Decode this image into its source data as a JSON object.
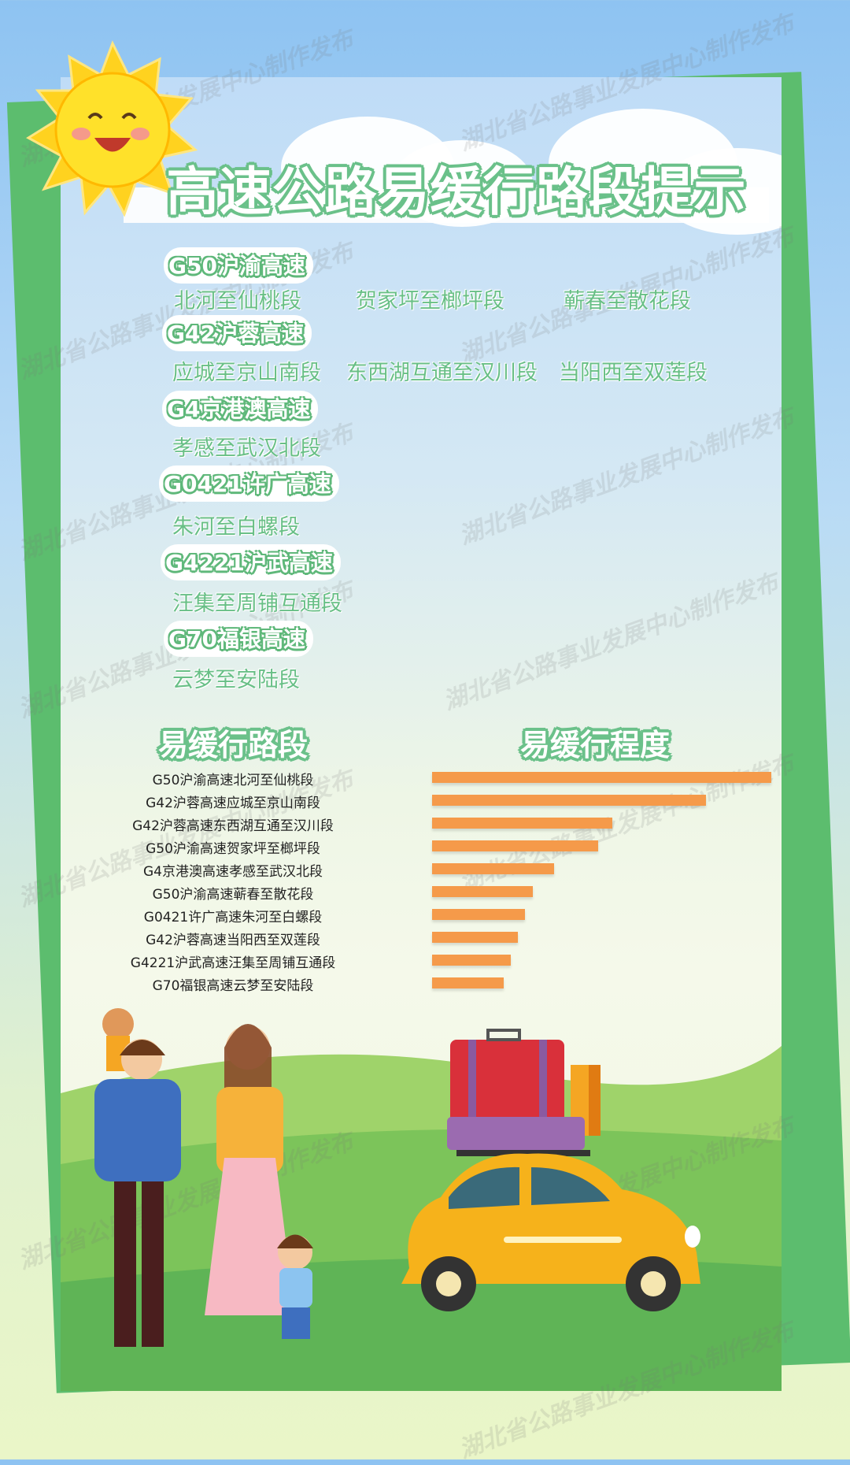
{
  "title": "高速公路易缓行路段提示",
  "watermark": "湖北省公路事业发展中心制作发布",
  "highways": [
    {
      "name": "G50沪渝高速",
      "segments": [
        "北河至仙桃段",
        "贺家坪至榔坪段",
        "蕲春至散花段"
      ]
    },
    {
      "name": "G42沪蓉高速",
      "segments": [
        "应城至京山南段",
        "东西湖互通至汉川段",
        "当阳西至双莲段"
      ]
    },
    {
      "name": "G4京港澳高速",
      "segments": [
        "孝感至武汉北段"
      ]
    },
    {
      "name": "G0421许广高速",
      "segments": [
        "朱河至白螺段"
      ]
    },
    {
      "name": "G4221沪武高速",
      "segments": [
        "汪集至周铺互通段"
      ]
    },
    {
      "name": "G70福银高速",
      "segments": [
        "云梦至安陆段"
      ]
    }
  ],
  "chart_data": {
    "type": "bar",
    "orientation": "horizontal",
    "left_title": "易缓行路段",
    "right_title": "易缓行程度",
    "categories": [
      "G50沪渝高速北河至仙桃段",
      "G42沪蓉高速应城至京山南段",
      "G42沪蓉高速东西湖互通至汉川段",
      "G50沪渝高速贺家坪至榔坪段",
      "G4京港澳高速孝感至武汉北段",
      "G50沪渝高速蕲春至散花段",
      "G0421许广高速朱河至白螺段",
      "G42沪蓉高速当阳西至双莲段",
      "G4221沪武高速汪集至周铺互通段",
      "G70福银高速云梦至安陆段"
    ],
    "values": [
      100,
      80.7,
      53.1,
      48.9,
      36.0,
      29.7,
      27.4,
      25.4,
      23.2,
      21.2
    ],
    "bar_color": "#f59a4a",
    "axis_shown": false,
    "grid": false
  },
  "colors": {
    "accent_green": "#6bc18a",
    "bar": "#f59a4a",
    "board": "#5cbd6e"
  }
}
